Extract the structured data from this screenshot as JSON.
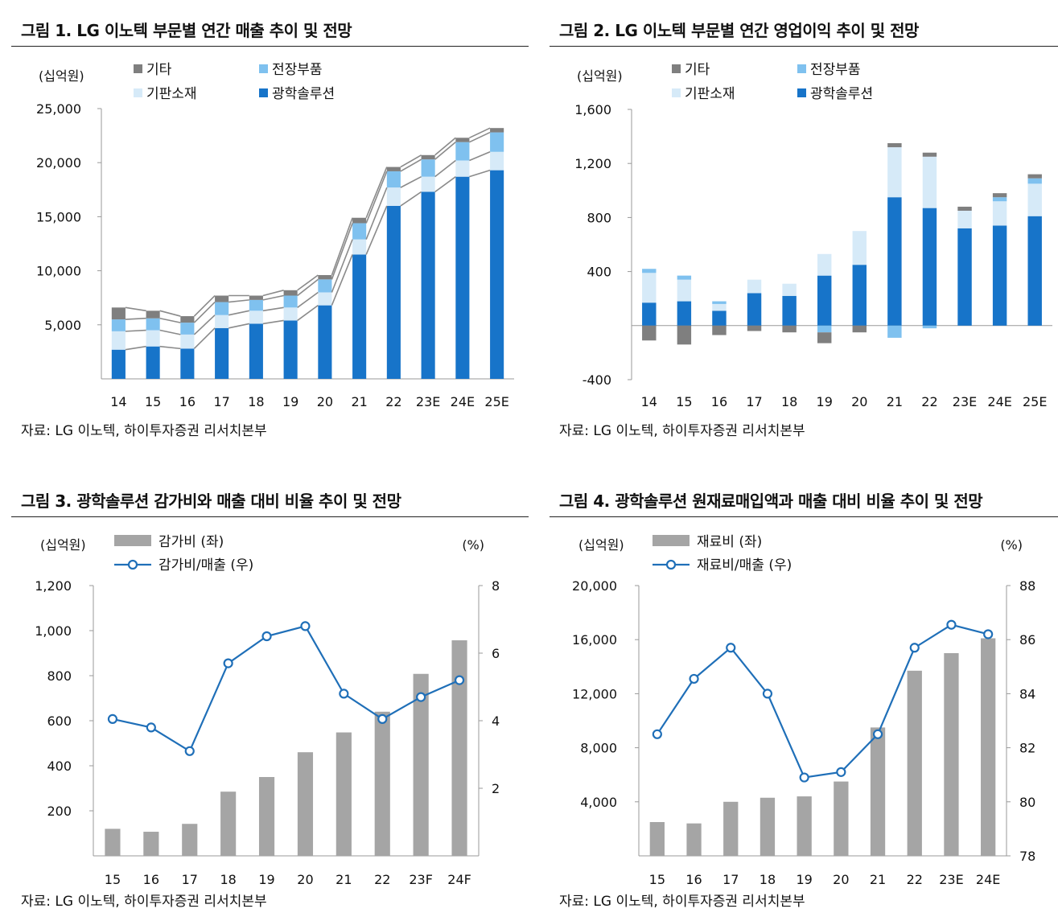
{
  "source": "자료: LG 이노텍, 하이투자증권 리서치본부",
  "figures": {
    "fig1": {
      "title": "그림 1. LG 이노텍 부문별 연간 매출 추이 및 전망",
      "unit": "(십억원)"
    },
    "fig2": {
      "title": "그림 2. LG 이노텍 부문별 연간 영업이익 추이 및 전망",
      "unit": "(십억원)"
    },
    "fig3": {
      "title": "그림 3. 광학솔루션 감가비와 매출 대비 비율 추이 및 전망",
      "unit_left": "(십억원)",
      "unit_right": "(%)"
    },
    "fig4": {
      "title": "그림 4. 광학솔루션 원재료매입액과 매출 대비 비율 추이 및 전망",
      "unit_left": "(십억원)",
      "unit_right": "(%)"
    }
  },
  "colors": {
    "optical": "#1774c9",
    "substrate": "#d6eaf8",
    "electronics": "#7fc1ef",
    "other": "#7f7f7f",
    "bar_gray": "#a5a5a5",
    "line_blue": "#1f6fb8"
  },
  "chart_data": [
    {
      "type": "bar",
      "stacked": true,
      "title": "그림 1. LG 이노텍 부문별 연간 매출 추이 및 전망",
      "ylabel": "(십억원)",
      "ylim": [
        0,
        25000
      ],
      "yticks": [
        5000,
        10000,
        15000,
        20000,
        25000
      ],
      "ytick_labels": [
        "5,000",
        "10,000",
        "15,000",
        "20,000",
        "25,000"
      ],
      "categories": [
        "14",
        "15",
        "16",
        "17",
        "18",
        "19",
        "20",
        "21",
        "22",
        "23E",
        "24E",
        "25E"
      ],
      "series": [
        {
          "name": "광학솔루션",
          "color": "#1774c9",
          "values": [
            2700,
            3000,
            2800,
            4700,
            5100,
            5400,
            6800,
            11500,
            16000,
            17300,
            18700,
            19300
          ]
        },
        {
          "name": "기판소재",
          "color": "#d6eaf8",
          "values": [
            1700,
            1500,
            1300,
            1200,
            1200,
            1200,
            1200,
            1400,
            1700,
            1400,
            1500,
            1700
          ]
        },
        {
          "name": "전장부품",
          "color": "#7fc1ef",
          "values": [
            1100,
            1100,
            1100,
            1200,
            1000,
            1100,
            1200,
            1500,
            1500,
            1600,
            1700,
            1800
          ]
        },
        {
          "name": "기타",
          "color": "#7f7f7f",
          "values": [
            1100,
            700,
            600,
            600,
            400,
            500,
            400,
            500,
            400,
            400,
            400,
            400
          ]
        }
      ],
      "legend": [
        "기타",
        "전장부품",
        "기판소재",
        "광학솔루션"
      ],
      "legend_position": "top"
    },
    {
      "type": "bar",
      "stacked": true,
      "title": "그림 2. LG 이노텍 부문별 연간 영업이익 추이 및 전망",
      "ylabel": "(십억원)",
      "ylim": [
        -400,
        1600
      ],
      "yticks": [
        -400,
        400,
        800,
        1200,
        1600
      ],
      "ytick_labels": [
        "-400",
        "400",
        "800",
        "1,200",
        "1,600"
      ],
      "categories": [
        "14",
        "15",
        "16",
        "17",
        "18",
        "19",
        "20",
        "21",
        "22",
        "23E",
        "24E",
        "25E"
      ],
      "series": [
        {
          "name": "광학솔루션",
          "color": "#1774c9",
          "values": [
            170,
            180,
            110,
            240,
            220,
            370,
            450,
            950,
            870,
            720,
            740,
            810
          ]
        },
        {
          "name": "기판소재",
          "color": "#d6eaf8",
          "values": [
            220,
            160,
            50,
            100,
            90,
            160,
            250,
            370,
            380,
            130,
            180,
            240
          ]
        },
        {
          "name": "전장부품",
          "color": "#7fc1ef",
          "values": [
            30,
            30,
            20,
            0,
            0,
            -50,
            0,
            -90,
            -20,
            0,
            30,
            40
          ]
        },
        {
          "name": "기타",
          "color": "#7f7f7f",
          "values": [
            -110,
            -140,
            -70,
            -40,
            -50,
            -80,
            -50,
            30,
            30,
            30,
            30,
            30
          ]
        }
      ],
      "legend": [
        "기타",
        "전장부품",
        "기판소재",
        "광학솔루션"
      ],
      "legend_position": "top"
    },
    {
      "type": "bar+line",
      "title": "그림 3. 광학솔루션 감가비와 매출 대비 비율 추이 및 전망",
      "ylabel": "(십억원)",
      "y2label": "(%)",
      "ylim": [
        0,
        1200
      ],
      "yticks": [
        200,
        400,
        600,
        800,
        1000,
        1200
      ],
      "ytick_labels": [
        "200",
        "400",
        "600",
        "800",
        "1,000",
        "1,200"
      ],
      "y2lim": [
        0,
        8
      ],
      "y2ticks": [
        2,
        4,
        6,
        8
      ],
      "categories": [
        "15",
        "16",
        "17",
        "18",
        "19",
        "20",
        "21",
        "22",
        "23F",
        "24F"
      ],
      "bars": {
        "name": "감가비 (좌)",
        "values": [
          120,
          107,
          142,
          285,
          350,
          460,
          548,
          640,
          808,
          957
        ]
      },
      "line": {
        "name": "감가비/매출 (우)",
        "values": [
          4.05,
          3.8,
          3.1,
          5.7,
          6.5,
          6.8,
          4.8,
          4.05,
          4.7,
          5.2
        ]
      },
      "legend_position": "top-left"
    },
    {
      "type": "bar+line",
      "title": "그림 4. 광학솔루션 원재료매입액과 매출 대비 비율 추이 및 전망",
      "ylabel": "(십억원)",
      "y2label": "(%)",
      "ylim": [
        0,
        20000
      ],
      "yticks": [
        4000,
        8000,
        12000,
        16000,
        20000
      ],
      "ytick_labels": [
        "4,000",
        "8,000",
        "12,000",
        "16,000",
        "20,000"
      ],
      "y2lim": [
        78,
        88
      ],
      "y2ticks": [
        78,
        80,
        82,
        84,
        86,
        88
      ],
      "categories": [
        "15",
        "16",
        "17",
        "18",
        "19",
        "20",
        "21",
        "22",
        "23E",
        "24E"
      ],
      "bars": {
        "name": "재료비 (좌)",
        "values": [
          2500,
          2400,
          4000,
          4300,
          4400,
          5500,
          9500,
          13700,
          15000,
          16100
        ]
      },
      "line": {
        "name": "재료비/매출 (우)",
        "values": [
          82.5,
          84.55,
          85.7,
          84.0,
          80.9,
          81.1,
          82.5,
          85.7,
          86.55,
          86.2
        ]
      },
      "legend_position": "top-left"
    }
  ]
}
